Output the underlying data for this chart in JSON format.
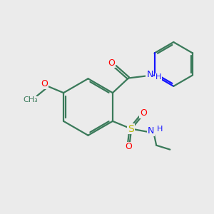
{
  "background_color": "#ebebeb",
  "bond_color": "#3a7a5a",
  "n_color": "#1414ff",
  "o_color": "#ff0000",
  "s_color": "#b8b800",
  "line_width": 1.6,
  "dbo": 0.055,
  "xlim": [
    0,
    10
  ],
  "ylim": [
    0,
    10
  ]
}
